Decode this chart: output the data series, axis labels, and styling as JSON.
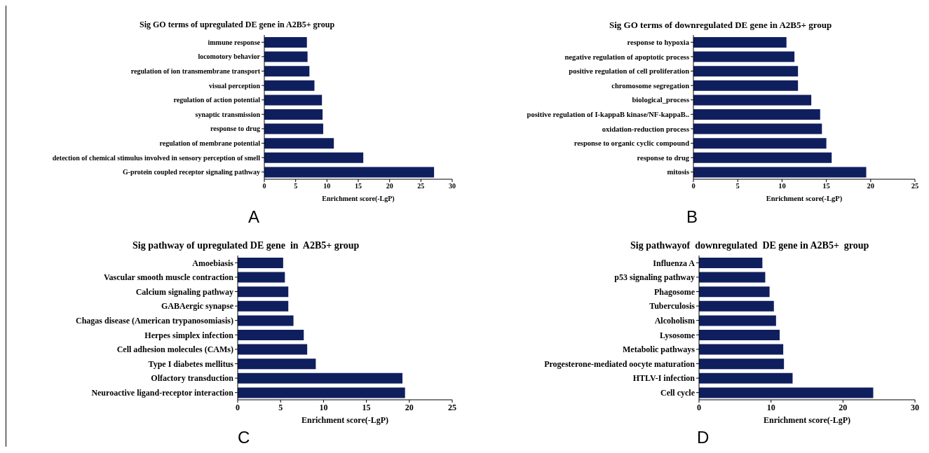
{
  "chart_data": [
    {
      "type": "bar",
      "orientation": "horizontal",
      "title": "Sig GO terms of upregulated DE gene in A2B5+ group",
      "xlabel": "Enrichment score(-LgP)",
      "categories": [
        "immune response",
        "locomotory behavior",
        "regulation of ion transmembrane transport",
        "visual perception",
        "regulation of action potential",
        "synaptic transmission",
        "response to drug",
        "regulation of membrane potential",
        "detection of chemical stimulus involved in sensory perception of smell",
        "G-protein coupled receptor signaling pathway"
      ],
      "values": [
        6.8,
        6.9,
        7.2,
        8.0,
        9.2,
        9.3,
        9.4,
        11.1,
        15.8,
        27.1
      ],
      "color": "#0f1f5e",
      "xlim": [
        0,
        30
      ],
      "xticks": [
        0,
        5,
        10,
        15,
        20,
        25,
        30
      ],
      "annotations": [
        "A"
      ]
    },
    {
      "type": "bar",
      "orientation": "horizontal",
      "title": "Sig GO terms of downregulated DE gene in A2B5+ group",
      "xlabel": "Enrichment score(-LgP)",
      "categories": [
        "response to hypoxia",
        "negative regulation of apoptotic process",
        "positive regulation of cell proliferation",
        "chromosome segregation",
        "biological_process",
        "positive regulation of I-kappaB kinase/NF-kappaB..",
        "oxidation-reduction process",
        "response to organic cyclic compound",
        "response to drug",
        "mitosis"
      ],
      "values": [
        10.5,
        11.4,
        11.8,
        11.8,
        13.3,
        14.3,
        14.5,
        15.0,
        15.6,
        19.5
      ],
      "color": "#0f1f5e",
      "xlim": [
        0,
        25
      ],
      "xticks": [
        0,
        5,
        10,
        15,
        20,
        25
      ],
      "annotations": [
        "B"
      ]
    },
    {
      "type": "bar",
      "orientation": "horizontal",
      "title": "Sig pathway of upregulated DE gene  in  A2B5+ group",
      "xlabel": "Enrichment score(-LgP)",
      "categories": [
        "Amoebiasis",
        "Vascular smooth muscle contraction",
        "Calcium signaling pathway",
        "GABAergic synapse",
        "Chagas disease (American trypanosomiasis)",
        "Herpes simplex infection",
        "Cell adhesion molecules (CAMs)",
        "Type I diabetes mellitus",
        "Olfactory transduction",
        "Neuroactive ligand-receptor interaction"
      ],
      "values": [
        5.3,
        5.5,
        5.9,
        5.9,
        6.5,
        7.7,
        8.1,
        9.1,
        19.2,
        19.5
      ],
      "color": "#0f1f5e",
      "xlim": [
        0,
        25
      ],
      "xticks": [
        0,
        5,
        10,
        15,
        20,
        25
      ],
      "annotations": [
        "C"
      ]
    },
    {
      "type": "bar",
      "orientation": "horizontal",
      "title": "Sig pathwayof  downregulated  DE gene in A2B5+  group",
      "xlabel": "Enrichment score(-LgP)",
      "categories": [
        "Influenza A",
        "p53 signaling pathway",
        "Phagosome",
        "Tuberculosis",
        "Alcoholism",
        "Lysosome",
        "Metabolic pathways",
        "Progesterone-mediated oocyte maturation",
        "HTLV-I infection",
        "Cell cycle"
      ],
      "values": [
        8.8,
        9.2,
        9.8,
        10.4,
        10.7,
        11.2,
        11.7,
        11.8,
        13.0,
        24.2
      ],
      "color": "#0f1f5e",
      "xlim": [
        0,
        30
      ],
      "xticks": [
        0,
        10,
        20,
        30
      ],
      "annotations": [
        "D"
      ]
    }
  ]
}
